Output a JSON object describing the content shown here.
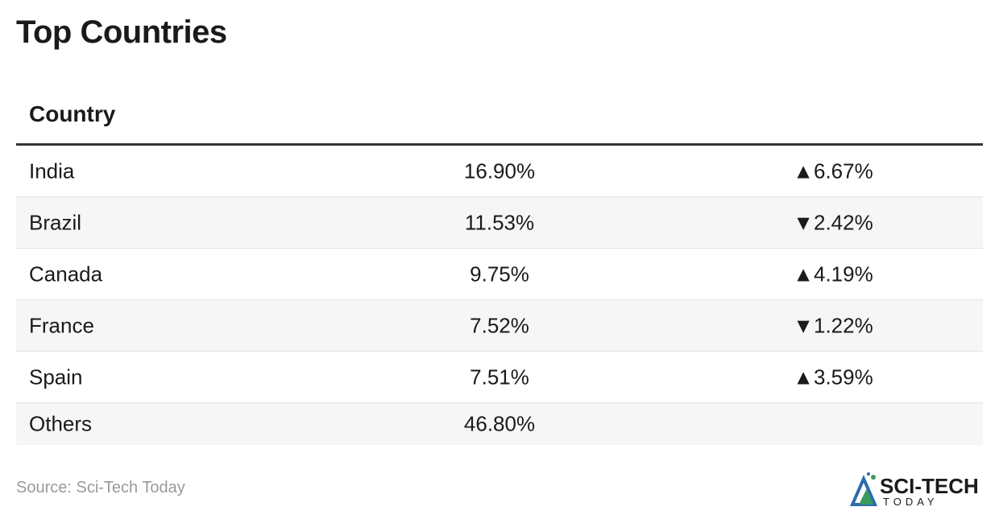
{
  "header": {
    "title": "Top Countries"
  },
  "table": {
    "columns": [
      "Country"
    ],
    "rows": [
      [
        "India",
        "16.90%",
        "▲6.67%"
      ],
      [
        "Brazil",
        "11.53%",
        "▼2.42%"
      ],
      [
        "Canada",
        "9.75%",
        "▲4.19%"
      ],
      [
        "France",
        "7.52%",
        "▼1.22%"
      ],
      [
        "Spain",
        "7.51%",
        "▲3.59%"
      ],
      [
        "Others",
        "46.80%"
      ]
    ]
  },
  "footer": {
    "source": "Source: Sci-Tech Today",
    "logo": {
      "name": "SCI-TECH",
      "tagline": "TODAY"
    }
  }
}
